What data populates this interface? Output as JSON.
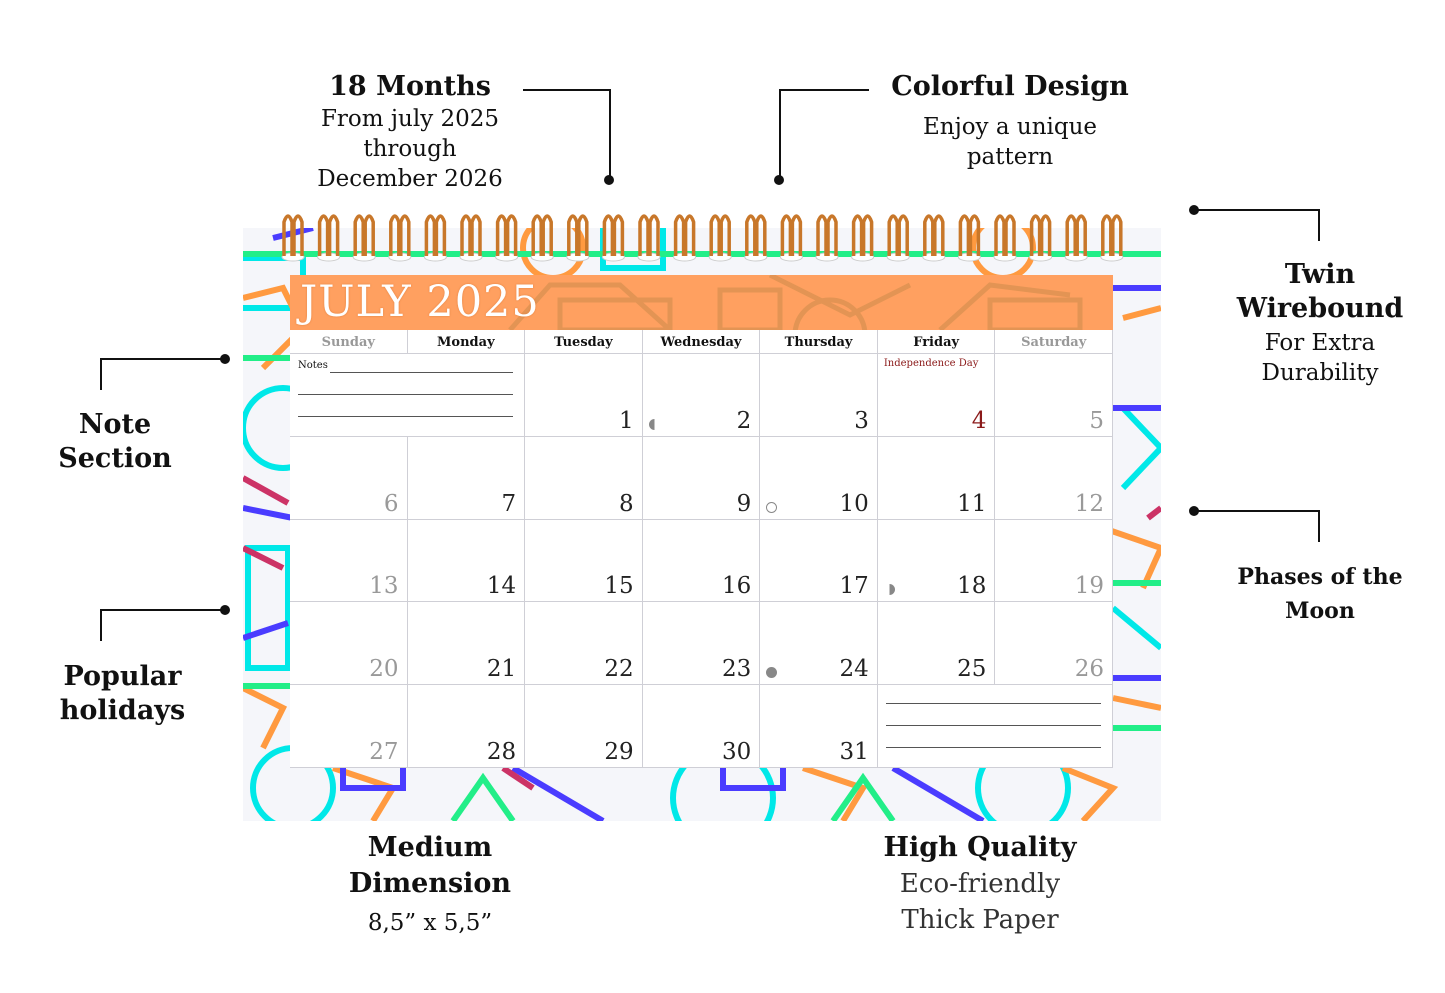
{
  "callouts": {
    "months": {
      "title": "18 Months",
      "line1": "From july 2025",
      "line2": "through",
      "line3": "December 2026"
    },
    "colorful": {
      "title": "Colorful Design",
      "sub": "Enjoy a unique pattern"
    },
    "wirebound": {
      "title": "Twin Wirebound",
      "sub": "For Extra Durability"
    },
    "notes": {
      "title": "Note Section"
    },
    "moon": {
      "title": "Phases of the Moon"
    },
    "holidays": {
      "title": "Popular holidays"
    },
    "dimension": {
      "title1": "Medium",
      "title2": "Dimension",
      "sub": "8,5” x 5,5”"
    },
    "quality": {
      "title": "High Quality",
      "line1": "Eco-friendly",
      "line2": "Thick Paper"
    }
  },
  "calendar": {
    "month_title": "JULY 2025",
    "weekdays": [
      "Sunday",
      "Monday",
      "Tuesday",
      "Wednesday",
      "Thursday",
      "Friday",
      "Saturday"
    ],
    "notes_label": "Notes",
    "holiday": {
      "day": "4",
      "name": "Independence Day"
    },
    "weeks": [
      [
        "",
        "",
        "1",
        "2",
        "3",
        "4",
        "5"
      ],
      [
        "6",
        "7",
        "8",
        "9",
        "10",
        "11",
        "12"
      ],
      [
        "13",
        "14",
        "15",
        "16",
        "17",
        "18",
        "19"
      ],
      [
        "20",
        "21",
        "22",
        "23",
        "24",
        "25",
        "26"
      ],
      [
        "27",
        "28",
        "29",
        "30",
        "31",
        "",
        ""
      ]
    ],
    "moon_phases": [
      {
        "day": "2",
        "phase": "first-quarter"
      },
      {
        "day": "10",
        "phase": "full-moon"
      },
      {
        "day": "18",
        "phase": "last-quarter"
      },
      {
        "day": "24",
        "phase": "new-moon"
      }
    ],
    "colors": {
      "header": "#ffa060",
      "holiday": "#8b1a1a",
      "ring": "#c8772a"
    }
  }
}
